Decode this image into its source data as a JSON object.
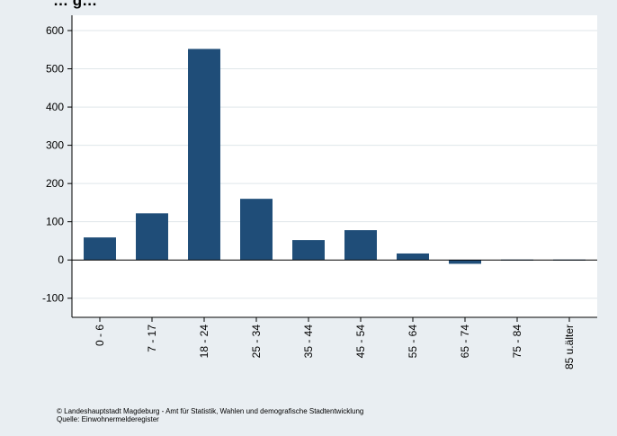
{
  "chart_data": {
    "type": "bar",
    "title": "… g…",
    "categories": [
      "0 - 6",
      "7 - 17",
      "18 - 24",
      "25 - 34",
      "35 - 44",
      "45 - 54",
      "55 - 64",
      "65 - 74",
      "75 - 84",
      "85 u.älter"
    ],
    "values": [
      59,
      122,
      552,
      160,
      52,
      78,
      17,
      -10,
      1,
      1
    ],
    "ylim": [
      -150,
      640
    ],
    "yticks": [
      -100,
      0,
      100,
      200,
      300,
      400,
      500,
      600
    ],
    "grid": true,
    "bar_color": "#1f4d78",
    "plot_background": "#ffffff",
    "page_background": "#e9eef2",
    "gridline_color": "#dfe6ea"
  },
  "footer": {
    "line1": "© Landeshauptstadt Magdeburg - Amt für Statistik, Wahlen und demografische Stadtentwicklung",
    "line2": "Quelle: Einwohnermelderegister"
  }
}
